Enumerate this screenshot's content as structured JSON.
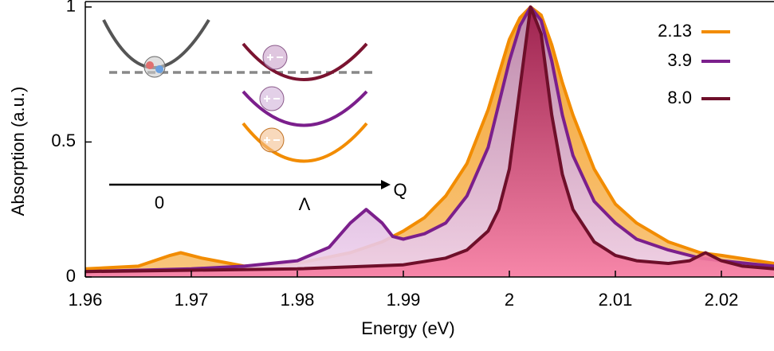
{
  "chart_data": {
    "type": "area-line",
    "x_label": "Energy (eV)",
    "y_label": "Absorption (a.u.)",
    "xlim": [
      1.96,
      2.025
    ],
    "ylim": [
      0,
      1.02
    ],
    "xticks": [
      1.96,
      1.97,
      1.98,
      1.99,
      2,
      2.01,
      2.02
    ],
    "yticks": [
      0,
      0.5,
      1
    ],
    "legend": "upper right",
    "series": [
      {
        "name": "2.13",
        "color": "#f28c00",
        "x": [
          1.96,
          1.965,
          1.968,
          1.969,
          1.971,
          1.975,
          1.98,
          1.985,
          1.988,
          1.99,
          1.992,
          1.994,
          1.996,
          1.998,
          2.0,
          2.001,
          2.002,
          2.003,
          2.004,
          2.005,
          2.006,
          2.008,
          2.01,
          2.012,
          2.015,
          2.018,
          2.02,
          2.025
        ],
        "values": [
          0.03,
          0.04,
          0.08,
          0.09,
          0.07,
          0.04,
          0.05,
          0.09,
          0.13,
          0.17,
          0.22,
          0.3,
          0.42,
          0.62,
          0.88,
          0.96,
          1.0,
          0.97,
          0.86,
          0.72,
          0.6,
          0.4,
          0.27,
          0.2,
          0.13,
          0.09,
          0.08,
          0.05
        ]
      },
      {
        "name": "3.9",
        "color": "#7b1f8c",
        "x": [
          1.96,
          1.97,
          1.975,
          1.98,
          1.983,
          1.985,
          1.9865,
          1.988,
          1.989,
          1.99,
          1.992,
          1.994,
          1.996,
          1.998,
          2.0,
          2.001,
          2.002,
          2.003,
          2.004,
          2.005,
          2.006,
          2.008,
          2.01,
          2.012,
          2.015,
          2.018,
          2.02,
          2.025
        ],
        "values": [
          0.02,
          0.03,
          0.04,
          0.06,
          0.11,
          0.2,
          0.25,
          0.2,
          0.15,
          0.14,
          0.16,
          0.2,
          0.3,
          0.48,
          0.8,
          0.93,
          1.0,
          0.95,
          0.8,
          0.6,
          0.45,
          0.28,
          0.2,
          0.14,
          0.1,
          0.07,
          0.06,
          0.04
        ]
      },
      {
        "name": "8.0",
        "color": "#6e0f2a",
        "x": [
          1.96,
          1.97,
          1.98,
          1.99,
          1.994,
          1.996,
          1.998,
          1.999,
          2.0,
          2.001,
          2.002,
          2.003,
          2.004,
          2.005,
          2.006,
          2.008,
          2.01,
          2.012,
          2.015,
          2.017,
          2.0185,
          2.02,
          2.022,
          2.025
        ],
        "values": [
          0.02,
          0.025,
          0.03,
          0.045,
          0.07,
          0.1,
          0.17,
          0.25,
          0.4,
          0.7,
          1.0,
          0.9,
          0.6,
          0.38,
          0.25,
          0.13,
          0.08,
          0.06,
          0.05,
          0.06,
          0.09,
          0.06,
          0.04,
          0.03
        ]
      }
    ],
    "inset": {
      "tick_labels": [
        "0",
        "Λ"
      ],
      "axis_label": "Q"
    }
  }
}
